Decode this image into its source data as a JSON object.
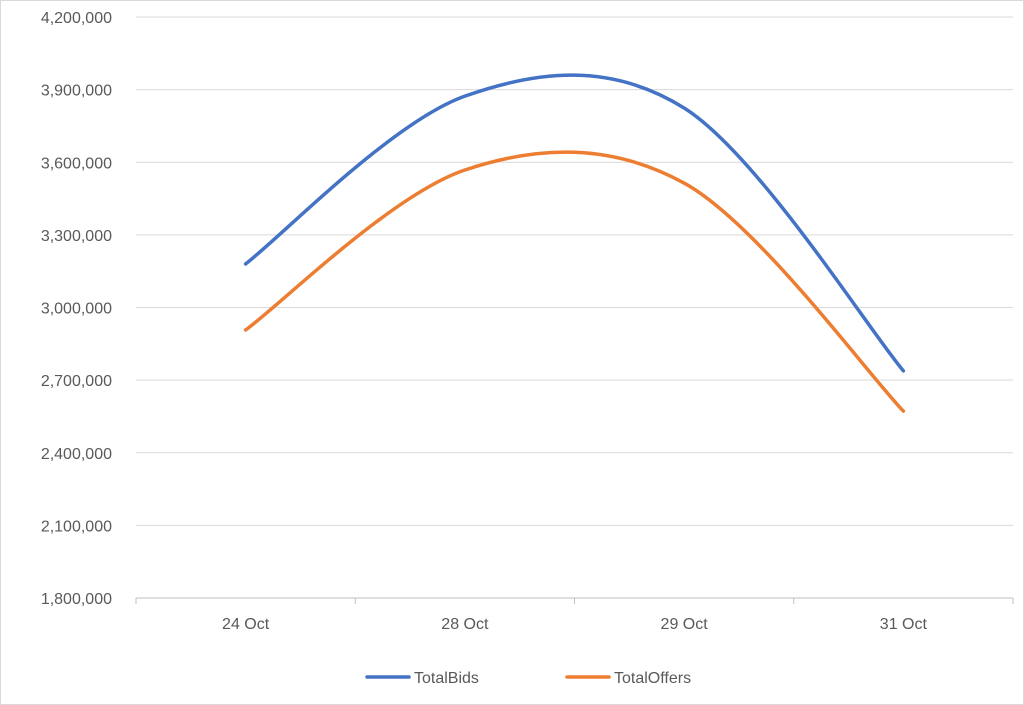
{
  "chart_data": {
    "type": "line",
    "title": "",
    "xlabel": "",
    "ylabel": "",
    "categories": [
      "24 Oct",
      "28 Oct",
      "29 Oct",
      "31 Oct"
    ],
    "series": [
      {
        "name": "TotalBids",
        "color": "#4472c4",
        "values": [
          3180000,
          3873000,
          3824000,
          2738000
        ]
      },
      {
        "name": "TotalOffers",
        "color": "#ed7d31",
        "values": [
          2907000,
          3568000,
          3514000,
          2572000
        ]
      }
    ],
    "ylim": [
      1800000,
      4200000
    ],
    "yticks": [
      "1,800,000",
      "2,100,000",
      "2,400,000",
      "2,700,000",
      "3,000,000",
      "3,300,000",
      "3,600,000",
      "3,900,000",
      "4,200,000"
    ],
    "smoothed": true,
    "grid": true,
    "legend": "bottom"
  }
}
